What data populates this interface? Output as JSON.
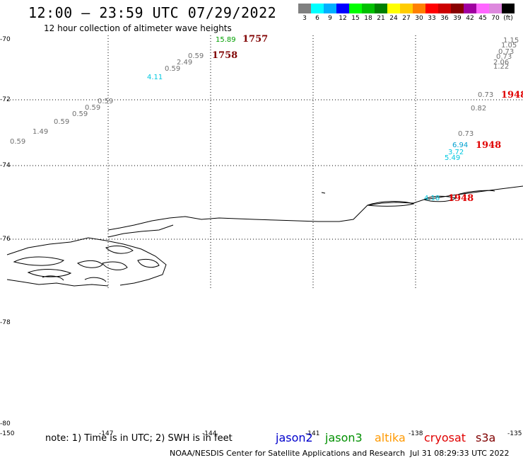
{
  "header": {
    "title": "12:00 – 23:59 UTC 07/29/2022",
    "subtitle": "12 hour collection of altimeter wave heights"
  },
  "scale": {
    "colors": [
      "#808080",
      "#00ffff",
      "#00b0ff",
      "#0000ff",
      "#00ff00",
      "#00c000",
      "#008000",
      "#ffff00",
      "#ffcc00",
      "#ff8000",
      "#ff0000",
      "#cc0000",
      "#880000",
      "#a000a0",
      "#ff66ff",
      "#dd88dd",
      "#000000"
    ],
    "labels": [
      "3",
      "6",
      "9",
      "12",
      "15",
      "18",
      "21",
      "24",
      "27",
      "30",
      "33",
      "36",
      "39",
      "42",
      "45",
      "70",
      "(ft)"
    ]
  },
  "axes": {
    "lat_labels": [
      "-70",
      "-72",
      "-74",
      "-76",
      "-78",
      "-80"
    ],
    "lon_labels": [
      "-150",
      "-147",
      "-144",
      "-141",
      "-138",
      "-135"
    ]
  },
  "wave_heights": [
    {
      "text": "15.89",
      "color": "#00a000"
    },
    {
      "text": "0.59",
      "color": "#707070"
    },
    {
      "text": "2.49",
      "color": "#707070"
    },
    {
      "text": "0.59",
      "color": "#707070"
    },
    {
      "text": "4.11",
      "color": "#00c8e0"
    },
    {
      "text": "0.59",
      "color": "#707070"
    },
    {
      "text": "0.59",
      "color": "#707070"
    },
    {
      "text": "0.59",
      "color": "#707070"
    },
    {
      "text": "0.59",
      "color": "#707070"
    },
    {
      "text": "1.49",
      "color": "#707070"
    },
    {
      "text": "0.59",
      "color": "#707070"
    },
    {
      "text": "1.15",
      "color": "#707070"
    },
    {
      "text": "1.05",
      "color": "#707070"
    },
    {
      "text": "0.73",
      "color": "#707070"
    },
    {
      "text": "0.73",
      "color": "#707070"
    },
    {
      "text": "2.06",
      "color": "#707070"
    },
    {
      "text": "1.22",
      "color": "#707070"
    },
    {
      "text": "0.73",
      "color": "#707070"
    },
    {
      "text": "0.82",
      "color": "#707070"
    },
    {
      "text": "0.73",
      "color": "#707070"
    },
    {
      "text": "6.94",
      "color": "#00a0d0"
    },
    {
      "text": "3.72",
      "color": "#00c8e0"
    },
    {
      "text": "5.49",
      "color": "#00c8e0"
    },
    {
      "text": "4.18",
      "color": "#00c8e0"
    }
  ],
  "times": [
    {
      "text": "1757",
      "color": "#800000"
    },
    {
      "text": "1758",
      "color": "#800000"
    },
    {
      "text": "1948",
      "color": "#e00000"
    },
    {
      "text": "1948",
      "color": "#e00000"
    },
    {
      "text": "1948",
      "color": "#e00000"
    }
  ],
  "footer": {
    "note": "note: 1) Time is in UTC; 2) SWH is in feet",
    "satellites": [
      {
        "name": "jason2",
        "color": "#0000cc"
      },
      {
        "name": "jason3",
        "color": "#009000"
      },
      {
        "name": "altika",
        "color": "#ff9900"
      },
      {
        "name": "cryosat",
        "color": "#e00000"
      },
      {
        "name": "s3a",
        "color": "#800000"
      }
    ],
    "credit": "NOAA/NESDIS Center for Satellite Applications and Research",
    "timestamp": "Jul 31 08:29:33 UTC 2022"
  }
}
